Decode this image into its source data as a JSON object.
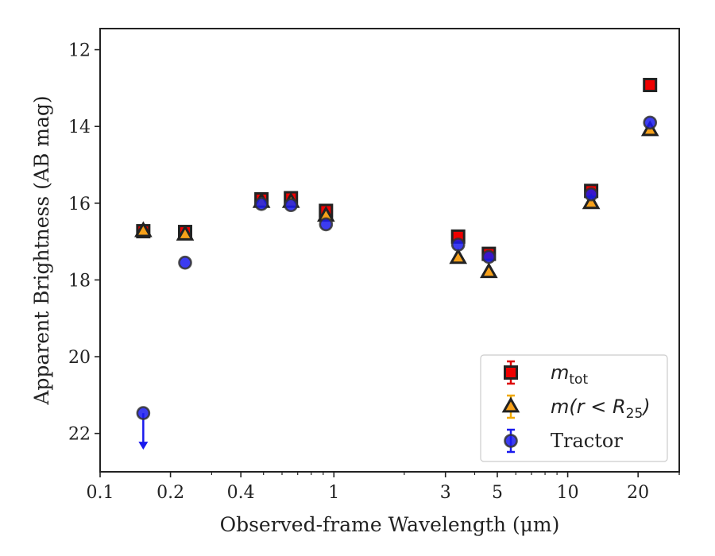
{
  "chart_data": {
    "type": "scatter",
    "xlabel": "Observed-frame Wavelength (μm)",
    "ylabel": "Apparent Brightness (AB mag)",
    "x_scale": "log",
    "xlim": [
      0.1,
      30
    ],
    "ylim": [
      23.0,
      11.45
    ],
    "y_inverted": true,
    "x_tick_labels": [
      "0.1",
      "0.2",
      "0.4",
      "1",
      "3",
      "5",
      "10",
      "20"
    ],
    "x_tick_values": [
      0.1,
      0.2,
      0.4,
      1,
      3,
      5,
      10,
      20
    ],
    "y_tick_values": [
      12,
      14,
      16,
      18,
      20,
      22
    ],
    "y_tick_labels": [
      "12",
      "14",
      "16",
      "18",
      "20",
      "22"
    ],
    "legend": {
      "placement": "lower-right"
    },
    "series": [
      {
        "name": "m_tot",
        "legend_main": "m",
        "legend_sub": "tot",
        "marker": "square",
        "color": "#ee0000",
        "errcolor": "#dd0000",
        "x": [
          0.153,
          0.231,
          0.49,
          0.655,
          0.925,
          3.4,
          4.6,
          12.6,
          22.5
        ],
        "y": [
          16.73,
          16.75,
          15.9,
          15.87,
          16.2,
          16.87,
          17.32,
          15.68,
          12.92
        ]
      },
      {
        "name": "m(r<R25)",
        "legend_main": "m(r < R",
        "legend_sub": "25",
        "legend_tail": ")",
        "marker": "triangle",
        "color": "#f7a11a",
        "errcolor": "#f0a800",
        "x": [
          0.153,
          0.231,
          0.49,
          0.655,
          0.925,
          3.4,
          4.6,
          12.6,
          22.5
        ],
        "y": [
          16.73,
          16.82,
          15.97,
          15.97,
          16.33,
          17.43,
          17.8,
          16.0,
          14.1
        ]
      },
      {
        "name": "Tractor",
        "legend_main": "Tractor",
        "marker": "circle",
        "color": "#1a1aee",
        "errcolor": "#1a1aee",
        "x": [
          0.153,
          0.231,
          0.49,
          0.655,
          0.925,
          3.4,
          4.6,
          12.6,
          22.5
        ],
        "y": [
          21.47,
          17.55,
          16.02,
          16.05,
          16.55,
          17.08,
          17.4,
          15.77,
          13.9
        ],
        "upper_limit_index": 0
      }
    ]
  }
}
